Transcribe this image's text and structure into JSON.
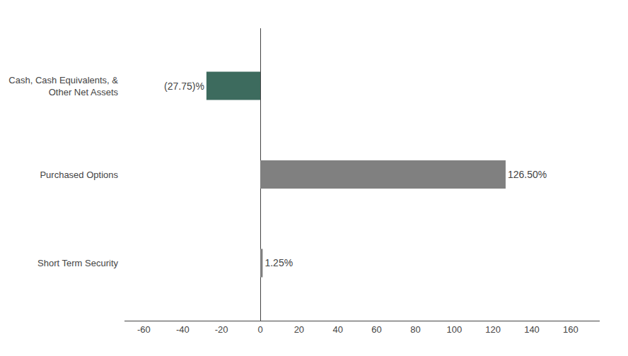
{
  "chart_data": {
    "type": "bar",
    "orientation": "horizontal",
    "categories": [
      "Short Term Security",
      "Purchased Options",
      "Cash, Cash Equivalents, &\nOther Net Assets"
    ],
    "values": [
      1.25,
      126.5,
      -27.75
    ],
    "value_labels": [
      "1.25%",
      "126.50%",
      "(27.75)%"
    ],
    "data_labels": true,
    "colors": [
      "#808080",
      "#808080",
      "#3d6b5e"
    ],
    "xlim": [
      -70,
      175
    ],
    "xticks": [
      -60,
      -40,
      -20,
      0,
      20,
      40,
      60,
      80,
      100,
      120,
      140,
      160
    ],
    "grid": false
  }
}
